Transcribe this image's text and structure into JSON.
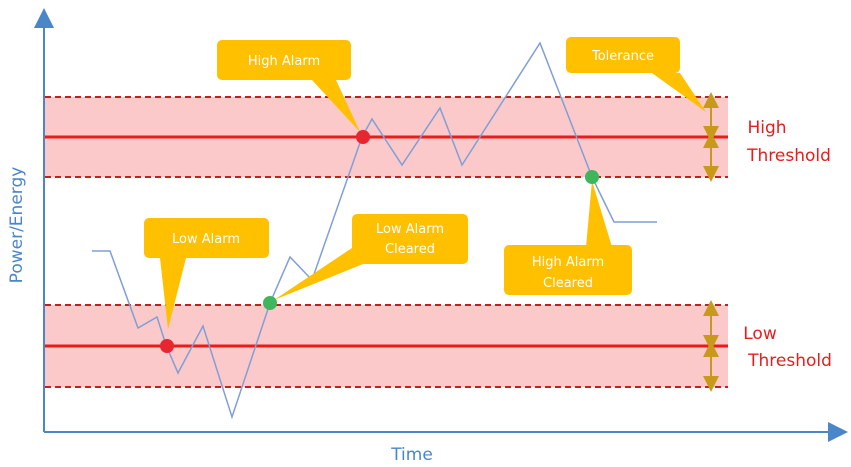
{
  "axes": {
    "x_label": "Time",
    "y_label": "Power/Energy"
  },
  "thresholds": {
    "high_label_line1": "High",
    "high_label_line2": "Threshold",
    "low_label_line1": "Low",
    "low_label_line2": "Threshold"
  },
  "callouts": {
    "high_alarm": "High Alarm",
    "tolerance": "Tolerance",
    "low_alarm": "Low Alarm",
    "low_alarm_cleared_line1": "Low Alarm",
    "low_alarm_cleared_line2": "Cleared",
    "high_alarm_cleared_line1": "High Alarm",
    "high_alarm_cleared_line2": "Cleared"
  },
  "colors": {
    "band_fill": "#fbc9c9",
    "threshold_line": "#e81c1c",
    "signal_line": "#7f9fd6",
    "axis": "#4a86c8",
    "callout": "#ffc000",
    "alarm_marker": "#e8262f",
    "cleared_marker": "#3fb65e",
    "tolerance_arrow": "#c99a1a"
  }
}
